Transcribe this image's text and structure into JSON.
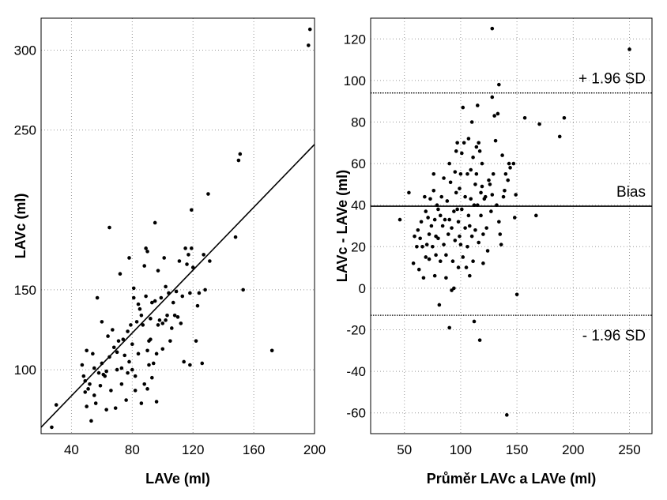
{
  "chart_data": [
    {
      "type": "scatter",
      "xlabel": "LAVe (ml)",
      "ylabel": "LAVc (ml)",
      "xlim": [
        20,
        200
      ],
      "ylim": [
        60,
        320
      ],
      "xticks": [
        40,
        80,
        120,
        160,
        200
      ],
      "yticks": [
        100,
        150,
        250,
        300
      ],
      "grid": "dotted",
      "regression_line": {
        "x": [
          20,
          200
        ],
        "y": [
          64,
          241
        ]
      },
      "points": [
        [
          27,
          64
        ],
        [
          30,
          78
        ],
        [
          47,
          103
        ],
        [
          48,
          96
        ],
        [
          49,
          93
        ],
        [
          49,
          86
        ],
        [
          50,
          77
        ],
        [
          50,
          112
        ],
        [
          51,
          88
        ],
        [
          52,
          91
        ],
        [
          53,
          68
        ],
        [
          54,
          110
        ],
        [
          55,
          101
        ],
        [
          55,
          84
        ],
        [
          56,
          79
        ],
        [
          57,
          145
        ],
        [
          58,
          98
        ],
        [
          59,
          90
        ],
        [
          60,
          104
        ],
        [
          60,
          130
        ],
        [
          61,
          97
        ],
        [
          62,
          96
        ],
        [
          63,
          99
        ],
        [
          63,
          75
        ],
        [
          64,
          121
        ],
        [
          65,
          189
        ],
        [
          65,
          108
        ],
        [
          66,
          87
        ],
        [
          67,
          125
        ],
        [
          68,
          114
        ],
        [
          69,
          76
        ],
        [
          70,
          100
        ],
        [
          70,
          111
        ],
        [
          71,
          118
        ],
        [
          72,
          160
        ],
        [
          73,
          101
        ],
        [
          73,
          91
        ],
        [
          74,
          119
        ],
        [
          75,
          109
        ],
        [
          76,
          81
        ],
        [
          77,
          124
        ],
        [
          77,
          98
        ],
        [
          78,
          105
        ],
        [
          78,
          170
        ],
        [
          79,
          128
        ],
        [
          80,
          116
        ],
        [
          80,
          100
        ],
        [
          81,
          151
        ],
        [
          81,
          145
        ],
        [
          82,
          87
        ],
        [
          82,
          96
        ],
        [
          83,
          130
        ],
        [
          84,
          110
        ],
        [
          84,
          141
        ],
        [
          85,
          138
        ],
        [
          86,
          79
        ],
        [
          86,
          134
        ],
        [
          87,
          128
        ],
        [
          88,
          91
        ],
        [
          88,
          165
        ],
        [
          89,
          176
        ],
        [
          89,
          146
        ],
        [
          90,
          88
        ],
        [
          90,
          112
        ],
        [
          90,
          174
        ],
        [
          91,
          103
        ],
        [
          91,
          118
        ],
        [
          92,
          119
        ],
        [
          92,
          132
        ],
        [
          93,
          95
        ],
        [
          93,
          142
        ],
        [
          94,
          104
        ],
        [
          95,
          192
        ],
        [
          95,
          143
        ],
        [
          96,
          80
        ],
        [
          96,
          110
        ],
        [
          97,
          162
        ],
        [
          97,
          128
        ],
        [
          98,
          131
        ],
        [
          99,
          145
        ],
        [
          100,
          129
        ],
        [
          100,
          113
        ],
        [
          101,
          170
        ],
        [
          102,
          152
        ],
        [
          102,
          131
        ],
        [
          103,
          134
        ],
        [
          104,
          148
        ],
        [
          105,
          118
        ],
        [
          106,
          126
        ],
        [
          107,
          142
        ],
        [
          108,
          134
        ],
        [
          109,
          149
        ],
        [
          110,
          133
        ],
        [
          111,
          168
        ],
        [
          112,
          129
        ],
        [
          113,
          146
        ],
        [
          114,
          105
        ],
        [
          115,
          176
        ],
        [
          116,
          166
        ],
        [
          117,
          172
        ],
        [
          118,
          148
        ],
        [
          118,
          103
        ],
        [
          119,
          200
        ],
        [
          119,
          176
        ],
        [
          120,
          164
        ],
        [
          122,
          118
        ],
        [
          123,
          140
        ],
        [
          124,
          148
        ],
        [
          126,
          104
        ],
        [
          127,
          172
        ],
        [
          128,
          150
        ],
        [
          130,
          210
        ],
        [
          131,
          168
        ],
        [
          148,
          183
        ],
        [
          150,
          231
        ],
        [
          151,
          235
        ],
        [
          153,
          150
        ],
        [
          172,
          112
        ],
        [
          196,
          303
        ],
        [
          197,
          313
        ]
      ]
    },
    {
      "type": "scatter",
      "xlabel": "Průměr LAVc a LAVe (ml)",
      "ylabel": "LAVc - LAVe (ml)",
      "xlim": [
        20,
        270
      ],
      "ylim": [
        -70,
        130
      ],
      "xticks": [
        50,
        100,
        150,
        200,
        250
      ],
      "yticks": [
        -60,
        -40,
        -20,
        0,
        20,
        40,
        60,
        80,
        100,
        120
      ],
      "grid": "dotted",
      "reference_lines": [
        {
          "label": "+ 1.96 SD",
          "y": 94,
          "style": "dotted"
        },
        {
          "label": "Bias",
          "y": 39.5,
          "style": "solid"
        },
        {
          "label": "- 1.96 SD",
          "y": -13,
          "style": "dotted"
        }
      ],
      "points": [
        [
          46,
          33
        ],
        [
          54,
          46
        ],
        [
          58,
          12
        ],
        [
          59,
          25
        ],
        [
          61,
          20
        ],
        [
          62,
          28
        ],
        [
          63,
          9
        ],
        [
          64,
          24
        ],
        [
          65,
          32
        ],
        [
          66,
          20
        ],
        [
          67,
          5
        ],
        [
          68,
          44
        ],
        [
          69,
          37
        ],
        [
          69,
          15
        ],
        [
          70,
          21
        ],
        [
          71,
          34
        ],
        [
          72,
          14
        ],
        [
          72,
          26
        ],
        [
          73,
          43
        ],
        [
          74,
          30
        ],
        [
          75,
          20
        ],
        [
          76,
          47
        ],
        [
          76,
          55
        ],
        [
          77,
          6
        ],
        [
          77,
          33
        ],
        [
          78,
          16
        ],
        [
          78,
          25
        ],
        [
          79,
          40
        ],
        [
          80,
          24
        ],
        [
          80,
          38
        ],
        [
          81,
          -8
        ],
        [
          82,
          35
        ],
        [
          82,
          13
        ],
        [
          83,
          44
        ],
        [
          84,
          30
        ],
        [
          85,
          21
        ],
        [
          85,
          53
        ],
        [
          86,
          33
        ],
        [
          87,
          5
        ],
        [
          87,
          16
        ],
        [
          88,
          42
        ],
        [
          89,
          26
        ],
        [
          90,
          33
        ],
        [
          90,
          60
        ],
        [
          90,
          -19
        ],
        [
          91,
          51
        ],
        [
          92,
          29
        ],
        [
          92,
          -1
        ],
        [
          93,
          13
        ],
        [
          94,
          37
        ],
        [
          94,
          0
        ],
        [
          95,
          23
        ],
        [
          95,
          56
        ],
        [
          96,
          46
        ],
        [
          96,
          66
        ],
        [
          97,
          38
        ],
        [
          97,
          70
        ],
        [
          98,
          32
        ],
        [
          98,
          10
        ],
        [
          99,
          25
        ],
        [
          99,
          48
        ],
        [
          100,
          55
        ],
        [
          100,
          21
        ],
        [
          101,
          38
        ],
        [
          101,
          65
        ],
        [
          102,
          15
        ],
        [
          102,
          87
        ],
        [
          103,
          70
        ],
        [
          104,
          29
        ],
        [
          104,
          44
        ],
        [
          105,
          10
        ],
        [
          106,
          20
        ],
        [
          106,
          55
        ],
        [
          107,
          35
        ],
        [
          107,
          72
        ],
        [
          108,
          30
        ],
        [
          108,
          6
        ],
        [
          109,
          57
        ],
        [
          109,
          43
        ],
        [
          110,
          25
        ],
        [
          110,
          80
        ],
        [
          111,
          13
        ],
        [
          111,
          63
        ],
        [
          112,
          -16
        ],
        [
          112,
          40
        ],
        [
          113,
          28
        ],
        [
          113,
          50
        ],
        [
          114,
          55
        ],
        [
          114,
          68
        ],
        [
          115,
          88
        ],
        [
          115,
          40
        ],
        [
          116,
          22
        ],
        [
          116,
          70
        ],
        [
          117,
          66
        ],
        [
          117,
          -25
        ],
        [
          118,
          46
        ],
        [
          118,
          35
        ],
        [
          119,
          60
        ],
        [
          119,
          49
        ],
        [
          120,
          12
        ],
        [
          120,
          26
        ],
        [
          121,
          43
        ],
        [
          122,
          44
        ],
        [
          123,
          29
        ],
        [
          124,
          18
        ],
        [
          125,
          52
        ],
        [
          126,
          50
        ],
        [
          127,
          37
        ],
        [
          128,
          45
        ],
        [
          129,
          55
        ],
        [
          130,
          83
        ],
        [
          131,
          71
        ],
        [
          132,
          40
        ],
        [
          133,
          84
        ],
        [
          134,
          32
        ],
        [
          135,
          26
        ],
        [
          136,
          21
        ],
        [
          137,
          64
        ],
        [
          138,
          44
        ],
        [
          139,
          47
        ],
        [
          140,
          55
        ],
        [
          141,
          -61
        ],
        [
          142,
          52
        ],
        [
          143,
          60
        ],
        [
          144,
          58
        ],
        [
          147,
          60
        ],
        [
          148,
          34
        ],
        [
          149,
          45
        ],
        [
          150,
          -3
        ],
        [
          157,
          82
        ],
        [
          167,
          35
        ],
        [
          170,
          79
        ],
        [
          188,
          73
        ],
        [
          192,
          82
        ],
        [
          250,
          115
        ],
        [
          128,
          125
        ],
        [
          128,
          92
        ],
        [
          134,
          98
        ]
      ]
    }
  ]
}
